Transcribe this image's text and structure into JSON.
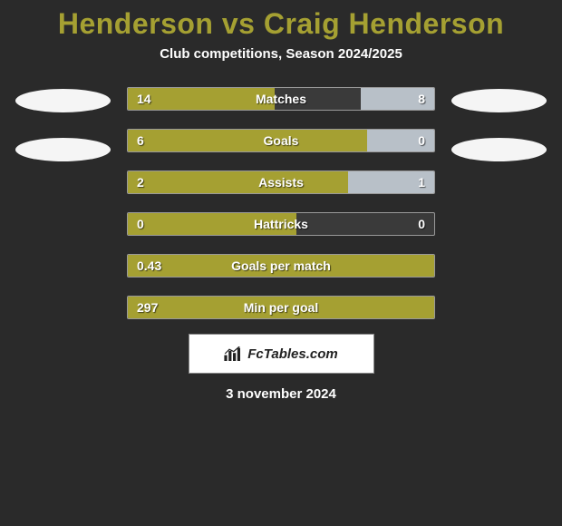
{
  "title": {
    "text": "Henderson vs Craig Henderson",
    "color": "#a5a032",
    "fontsize": 32
  },
  "subtitle": "Club competitions, Season 2024/2025",
  "bar_colors": {
    "left": "#a5a032",
    "right": "#b8c0c8",
    "empty": "#3a3a3a",
    "border": "#999999"
  },
  "avatar_color": "#f5f5f5",
  "stats": [
    {
      "label": "Matches",
      "left_val": "14",
      "right_val": "8",
      "left_pct": 48,
      "right_pct": 24
    },
    {
      "label": "Goals",
      "left_val": "6",
      "right_val": "0",
      "left_pct": 78,
      "right_pct": 22
    },
    {
      "label": "Assists",
      "left_val": "2",
      "right_val": "1",
      "left_pct": 72,
      "right_pct": 28
    },
    {
      "label": "Hattricks",
      "left_val": "0",
      "right_val": "0",
      "left_pct": 55,
      "right_pct": 0
    },
    {
      "label": "Goals per match",
      "left_val": "0.43",
      "right_val": "",
      "left_pct": 100,
      "right_pct": 0
    },
    {
      "label": "Min per goal",
      "left_val": "297",
      "right_val": "",
      "left_pct": 100,
      "right_pct": 0
    }
  ],
  "brand": "FcTables.com",
  "date": "3 november 2024"
}
